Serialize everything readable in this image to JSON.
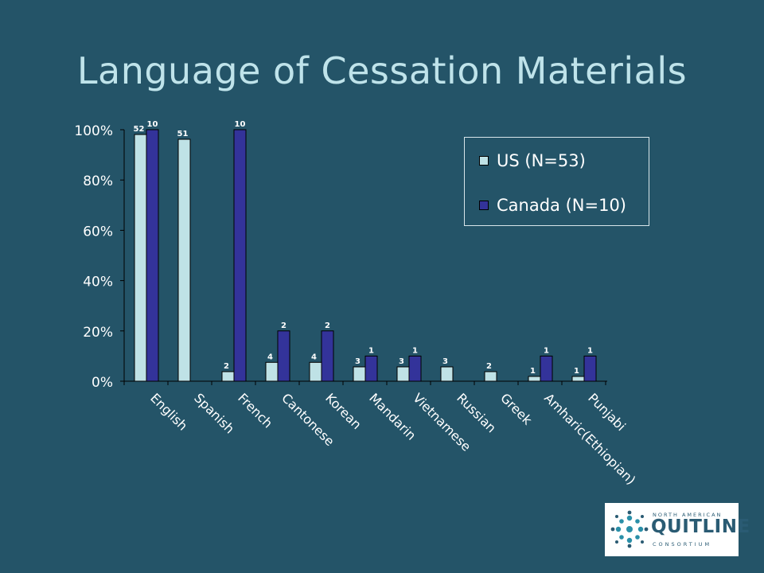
{
  "slide": {
    "title": "Language of Cessation Materials"
  },
  "logo": {
    "top_text": "NORTH AMERICAN",
    "main_text": "QUITLINE",
    "bottom_text": "CONSORTIUM"
  },
  "colors": {
    "background": "#245468",
    "us": "#bfe2e6",
    "canada": "#33339a",
    "title": "#bfe3ea",
    "text": "#ffffff"
  },
  "chart_data": {
    "type": "bar",
    "title": "",
    "xlabel": "",
    "ylabel": "",
    "ylim": [
      0,
      100
    ],
    "yticks": [
      "0%",
      "20%",
      "40%",
      "60%",
      "80%",
      "100%"
    ],
    "grid": false,
    "legend_position": "top-right",
    "categories": [
      "English",
      "Spanish",
      "French",
      "Cantonese",
      "Korean",
      "Mandarin",
      "Vietnamese",
      "Russian",
      "Greek",
      "Amharic(Ethiopian)",
      "Punjabi"
    ],
    "series": [
      {
        "name": "US (N=53)",
        "values": [
          98.1,
          96.2,
          3.8,
          7.5,
          7.5,
          5.7,
          5.7,
          5.7,
          3.8,
          1.9,
          1.9
        ],
        "labels": [
          "52",
          "51",
          "2",
          "4",
          "4",
          "3",
          "3",
          "3",
          "2",
          "1",
          "1"
        ]
      },
      {
        "name": "Canada (N=10)",
        "values": [
          100,
          0,
          100,
          20,
          20,
          10,
          10,
          0,
          0,
          10,
          10
        ],
        "labels": [
          "10",
          "",
          "10",
          "2",
          "2",
          "1",
          "1",
          "",
          "",
          "1",
          "1"
        ]
      }
    ]
  }
}
